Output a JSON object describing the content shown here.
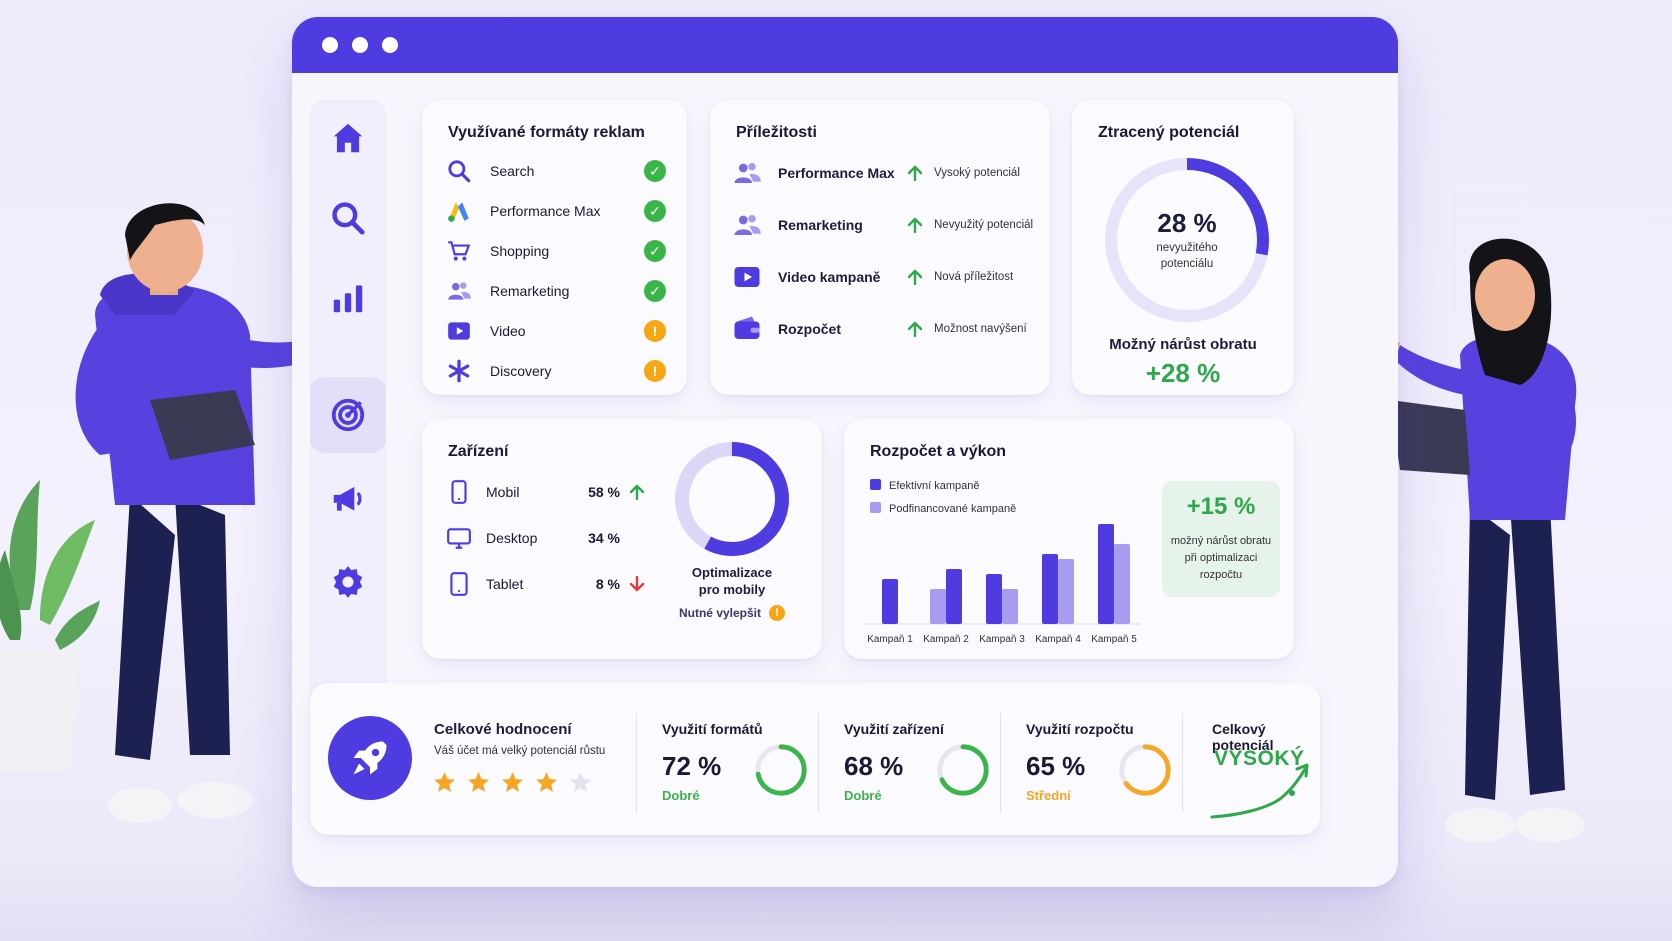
{
  "colors": {
    "accent": "#4e3ce0",
    "accent_light": "#a89cf0",
    "ok": "#39b54a",
    "warn": "#f6a611",
    "down": "#e23b3b",
    "orange": "#f5a623"
  },
  "sidebar": {
    "items": [
      {
        "icon": "home-icon"
      },
      {
        "icon": "search-icon"
      },
      {
        "icon": "chart-icon"
      },
      {
        "icon": "target-icon",
        "active": true
      },
      {
        "icon": "megaphone-icon"
      },
      {
        "icon": "gear-icon"
      }
    ]
  },
  "formats": {
    "title": "Využívané formáty reklam",
    "items": [
      {
        "label": "Search",
        "icon": "search-icon",
        "status": "ok"
      },
      {
        "label": "Performance Max",
        "icon": "google-ads-icon",
        "status": "ok"
      },
      {
        "label": "Shopping",
        "icon": "cart-icon",
        "status": "ok"
      },
      {
        "label": "Remarketing",
        "icon": "users-icon",
        "status": "ok"
      },
      {
        "label": "Video",
        "icon": "play-icon",
        "status": "warn"
      },
      {
        "label": "Discovery",
        "icon": "asterisk-icon",
        "status": "warn"
      }
    ]
  },
  "opportunities": {
    "title": "Příležitosti",
    "items": [
      {
        "label": "Performance Max",
        "note": "Vysoký potenciál",
        "icon": "users-icon"
      },
      {
        "label": "Remarketing",
        "note": "Nevyužitý potenciál",
        "icon": "users-icon"
      },
      {
        "label": "Video kampaně",
        "note": "Nová příležitost",
        "icon": "play-icon"
      },
      {
        "label": "Rozpočet",
        "note": "Možnost navýšení",
        "icon": "wallet-icon"
      }
    ]
  },
  "lost": {
    "title": "Ztracený potenciál",
    "value": "28 %",
    "value_fraction": 0.28,
    "caption_line1": "nevyužitého",
    "caption_line2": "potenciálu",
    "growth_label": "Možný nárůst obratu",
    "growth_value": "+28 %"
  },
  "devices": {
    "title": "Zařízení",
    "items": [
      {
        "label": "Mobil",
        "value": "58 %",
        "trend": "up",
        "icon": "phone-icon"
      },
      {
        "label": "Desktop",
        "value": "34 %",
        "trend": "none",
        "icon": "monitor-icon"
      },
      {
        "label": "Tablet",
        "value": "8 %",
        "trend": "down",
        "icon": "tablet-icon"
      }
    ],
    "donut_fraction": 0.58,
    "donut_caption_line1": "Optimalizace",
    "donut_caption_line2": "pro mobily",
    "need_label": "Nutné vylepšit"
  },
  "budget": {
    "title": "Rozpočet a výkon",
    "highlight_value": "+15 %",
    "highlight_line1": "možný nárůst obratu",
    "highlight_line2": "při optimalizaci",
    "highlight_line3": "rozpočtu"
  },
  "chart_data": {
    "type": "bar",
    "title": "Rozpočet a výkon",
    "categories": [
      "Kampaň 1",
      "Kampaň 2",
      "Kampaň 3",
      "Kampaň 4",
      "Kampaň 5"
    ],
    "series": [
      {
        "name": "Efektivní kampaně",
        "values": [
          45,
          55,
          50,
          70,
          100
        ]
      },
      {
        "name": "Podfinancované kampaně",
        "values": [
          0,
          35,
          35,
          65,
          80
        ]
      }
    ],
    "order_note": "Kampaň 1–2: podfinancované then efektivní; Kampaň 3–5: ",
    "ylim": [
      0,
      100
    ],
    "legend": "top-left",
    "grid": false
  },
  "summary": {
    "title": "Celkové hodnocení",
    "subtitle": "Váš účet má velký potenciál růstu",
    "rating": 4,
    "rating_max": 5,
    "kpis": [
      {
        "title": "Využití formátů",
        "value": "72 %",
        "fraction": 0.72,
        "status": "Dobré",
        "color": "#39b54a"
      },
      {
        "title": "Využití zařízení",
        "value": "68 %",
        "fraction": 0.68,
        "status": "Dobré",
        "color": "#39b54a"
      },
      {
        "title": "Využití rozpočtu",
        "value": "65 %",
        "fraction": 0.65,
        "status": "Střední",
        "color": "#f5a623"
      }
    ],
    "overall_title": "Celkový potenciál",
    "overall_value": "VYSOKÝ"
  }
}
